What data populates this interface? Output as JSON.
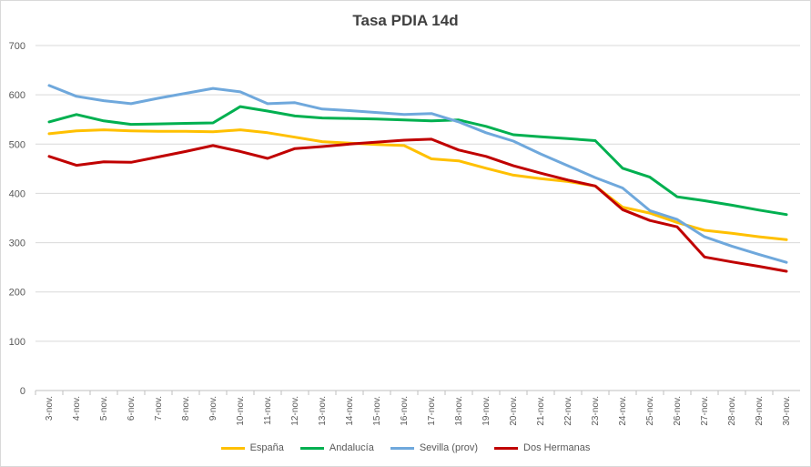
{
  "chart_data": {
    "type": "line",
    "title": "Tasa PDIA 14d",
    "categories": [
      "3-nov.",
      "4-nov.",
      "5-nov.",
      "6-nov.",
      "7-nov.",
      "8-nov.",
      "9-nov.",
      "10-nov.",
      "11-nov.",
      "12-nov.",
      "13-nov.",
      "14-nov.",
      "15-nov.",
      "16-nov.",
      "17-nov.",
      "18-nov.",
      "19-nov.",
      "20-nov.",
      "21-nov.",
      "22-nov.",
      "23-nov.",
      "24-nov.",
      "25-nov.",
      "26-nov.",
      "27-nov.",
      "28-nov.",
      "29-nov.",
      "30-nov."
    ],
    "ylim": [
      0,
      700
    ],
    "yticks": [
      0,
      100,
      200,
      300,
      400,
      500,
      600,
      700
    ],
    "grid": true,
    "legend_position": "bottom",
    "series": [
      {
        "name": "España",
        "color": "#ffc000",
        "values": [
          521,
          527,
          529,
          527,
          526,
          526,
          525,
          529,
          523,
          514,
          505,
          502,
          499,
          497,
          470,
          466,
          451,
          437,
          430,
          424,
          415,
          372,
          360,
          341,
          325,
          319,
          312,
          306
        ]
      },
      {
        "name": "Andalucía",
        "color": "#00b050",
        "values": [
          545,
          560,
          547,
          540,
          541,
          542,
          543,
          576,
          567,
          557,
          553,
          552,
          551,
          549,
          547,
          549,
          536,
          519,
          515,
          511,
          507,
          451,
          433,
          393,
          385,
          376,
          366,
          357
        ]
      },
      {
        "name": "Sevilla (prov)",
        "color": "#6fa8dc",
        "values": [
          619,
          597,
          588,
          582,
          593,
          603,
          613,
          606,
          582,
          584,
          571,
          568,
          564,
          560,
          562,
          545,
          523,
          506,
          480,
          456,
          432,
          411,
          365,
          347,
          312,
          293,
          276,
          260
        ]
      },
      {
        "name": "Dos Hermanas",
        "color": "#c00000",
        "values": [
          475,
          457,
          464,
          463,
          474,
          485,
          497,
          485,
          471,
          491,
          495,
          500,
          504,
          508,
          510,
          488,
          475,
          456,
          441,
          427,
          415,
          367,
          345,
          332,
          271,
          261,
          252,
          242
        ]
      }
    ]
  }
}
